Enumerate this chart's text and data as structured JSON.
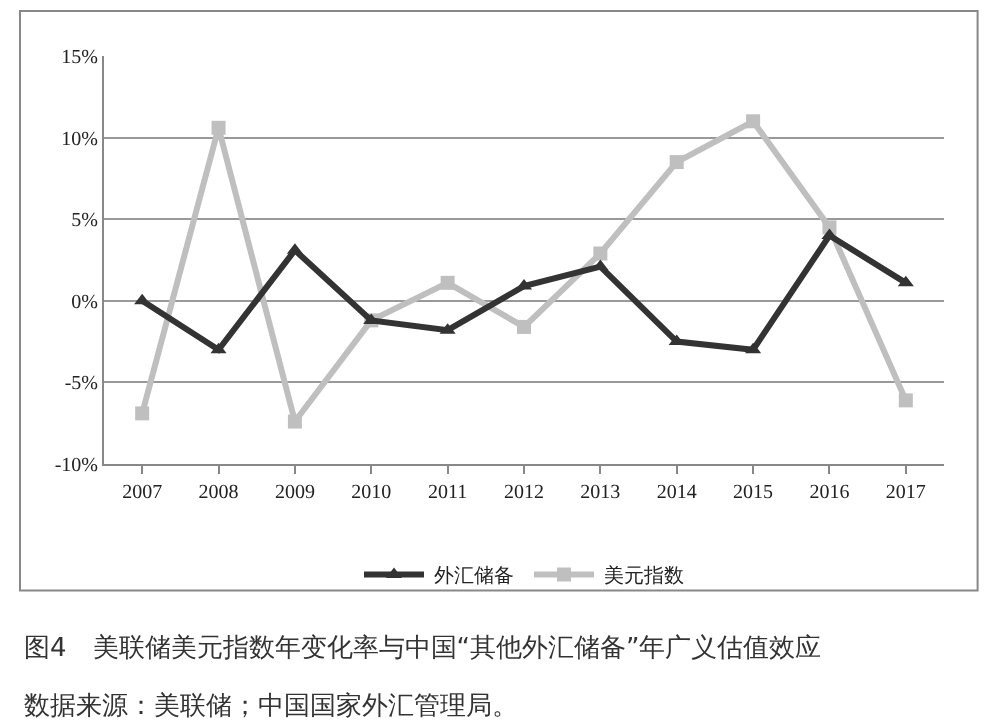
{
  "chart_data": {
    "type": "line",
    "categories": [
      "2007",
      "2008",
      "2009",
      "2010",
      "2011",
      "2012",
      "2013",
      "2014",
      "2015",
      "2016",
      "2017"
    ],
    "series": [
      {
        "name": "外汇储备",
        "color": "#333333",
        "marker": "triangle",
        "values": [
          0,
          -3,
          3.1,
          -1.2,
          -1.8,
          0.9,
          2.1,
          -2.5,
          -3,
          4,
          1.1
        ]
      },
      {
        "name": "美元指数",
        "color": "#bfbfbf",
        "marker": "square",
        "values": [
          -6.9,
          10.6,
          -7.4,
          -1.2,
          1.1,
          -1.6,
          2.9,
          8.5,
          11,
          4.5,
          -6.1
        ]
      }
    ],
    "ylim": [
      -10,
      15
    ],
    "yticks": [
      {
        "value": -10,
        "label": "-10%"
      },
      {
        "value": -5,
        "label": "-5%"
      },
      {
        "value": 0,
        "label": "0%"
      },
      {
        "value": 5,
        "label": "5%"
      },
      {
        "value": 10,
        "label": "10%"
      },
      {
        "value": 15,
        "label": "15%"
      }
    ],
    "grid": "y",
    "legend": "bottom",
    "line_style": "solid",
    "annotations": [
      "图4　美联储美元指数年变化率与中国“其他外汇储备”年广义估值效应",
      "数据来源：美联储；中国国家外汇管理局。"
    ]
  }
}
